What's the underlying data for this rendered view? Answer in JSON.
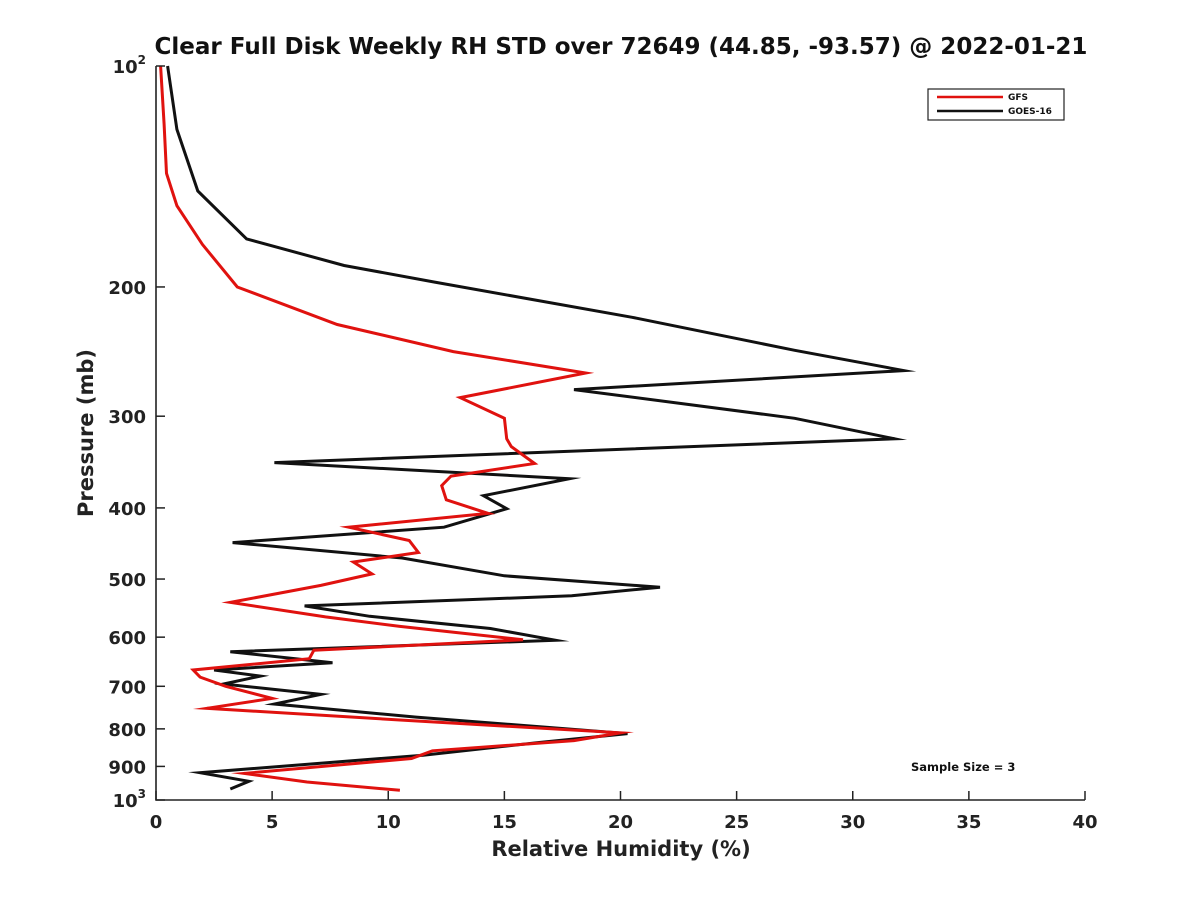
{
  "chart_data": {
    "type": "line",
    "title": "Clear Full Disk Weekly RH STD over 72649 (44.85, -93.57) @ 2022-01-21",
    "xlabel": "Relative Humidity (%)",
    "ylabel": "Pressure (mb)",
    "xlim": [
      0,
      40
    ],
    "ylim": [
      100,
      1000
    ],
    "y_scale": "log",
    "y_reversed": true,
    "grid": false,
    "legend_position": "top-right",
    "x_ticks": [
      0,
      5,
      10,
      15,
      20,
      25,
      30,
      35,
      40
    ],
    "y_ticks": [
      {
        "value": 100,
        "label": "10",
        "sup": "2"
      },
      {
        "value": 200,
        "label": "200",
        "sup": ""
      },
      {
        "value": 300,
        "label": "300",
        "sup": ""
      },
      {
        "value": 400,
        "label": "400",
        "sup": ""
      },
      {
        "value": 500,
        "label": "500",
        "sup": ""
      },
      {
        "value": 600,
        "label": "600",
        "sup": ""
      },
      {
        "value": 700,
        "label": "700",
        "sup": ""
      },
      {
        "value": 800,
        "label": "800",
        "sup": ""
      },
      {
        "value": 900,
        "label": "900",
        "sup": ""
      },
      {
        "value": 1000,
        "label": "10",
        "sup": "3"
      }
    ],
    "series": [
      {
        "name": "GFS",
        "color": "#e0120f",
        "x": [
          0.2,
          0.35,
          0.45,
          0.9,
          2.0,
          3.5,
          7.8,
          12.8,
          18.5,
          13.1,
          15.0,
          15.1,
          15.3,
          16.3,
          12.7,
          12.3,
          12.5,
          14.3,
          8.3,
          10.9,
          11.3,
          8.5,
          9.3,
          7.1,
          3.2,
          7.3,
          10.5,
          15.8,
          6.8,
          6.6,
          1.6,
          1.9,
          3.0,
          5.0,
          2.2,
          10.5,
          20.0,
          18.0,
          11.9,
          11.0,
          3.8,
          6.5,
          10.5
        ],
        "y": [
          100,
          120,
          140,
          155,
          175,
          200,
          225,
          245,
          262,
          283,
          302,
          322,
          330,
          348,
          362,
          373,
          390,
          407,
          425,
          443,
          460,
          474,
          492,
          510,
          538,
          563,
          580,
          605,
          625,
          642,
          665,
          680,
          700,
          727,
          750,
          778,
          810,
          830,
          857,
          878,
          920,
          945,
          970
        ]
      },
      {
        "name": "GOES-16",
        "color": "#111111",
        "x": [
          0.5,
          0.9,
          1.8,
          3.9,
          8.1,
          12.0,
          20.5,
          27.5,
          32.2,
          18.0,
          27.5,
          31.8,
          5.1,
          17.8,
          14.1,
          15.1,
          12.4,
          3.3,
          10.6,
          15.0,
          21.7,
          17.9,
          6.4,
          9.2,
          14.4,
          17.2,
          3.2,
          7.6,
          2.5,
          4.5,
          2.9,
          7.1,
          5.1,
          11.2,
          20.3,
          16.5,
          11.5,
          1.9,
          4.0,
          3.2
        ],
        "y": [
          100,
          122,
          148,
          172,
          187,
          197,
          220,
          244,
          260,
          276,
          302,
          322,
          347,
          365,
          385,
          401,
          425,
          446,
          468,
          495,
          513,
          527,
          544,
          562,
          584,
          606,
          628,
          650,
          665,
          678,
          695,
          718,
          740,
          771,
          812,
          835,
          869,
          918,
          943,
          966
        ]
      }
    ],
    "legend": [
      {
        "label": "GFS",
        "color": "#e0120f"
      },
      {
        "label": "GOES-16",
        "color": "#111111"
      }
    ],
    "annotation": "Sample Size = 3"
  }
}
